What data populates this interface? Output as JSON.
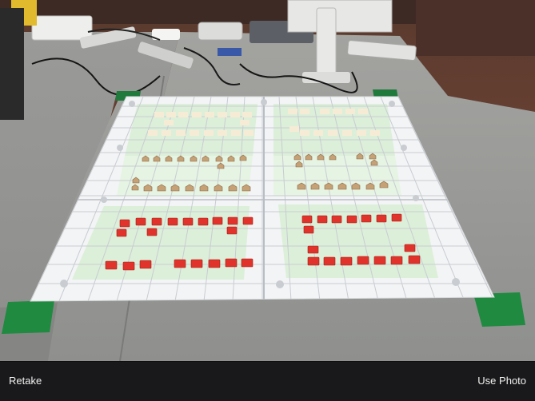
{
  "camera_review": {
    "retake_label": "Retake",
    "use_photo_label": "Use Photo"
  }
}
